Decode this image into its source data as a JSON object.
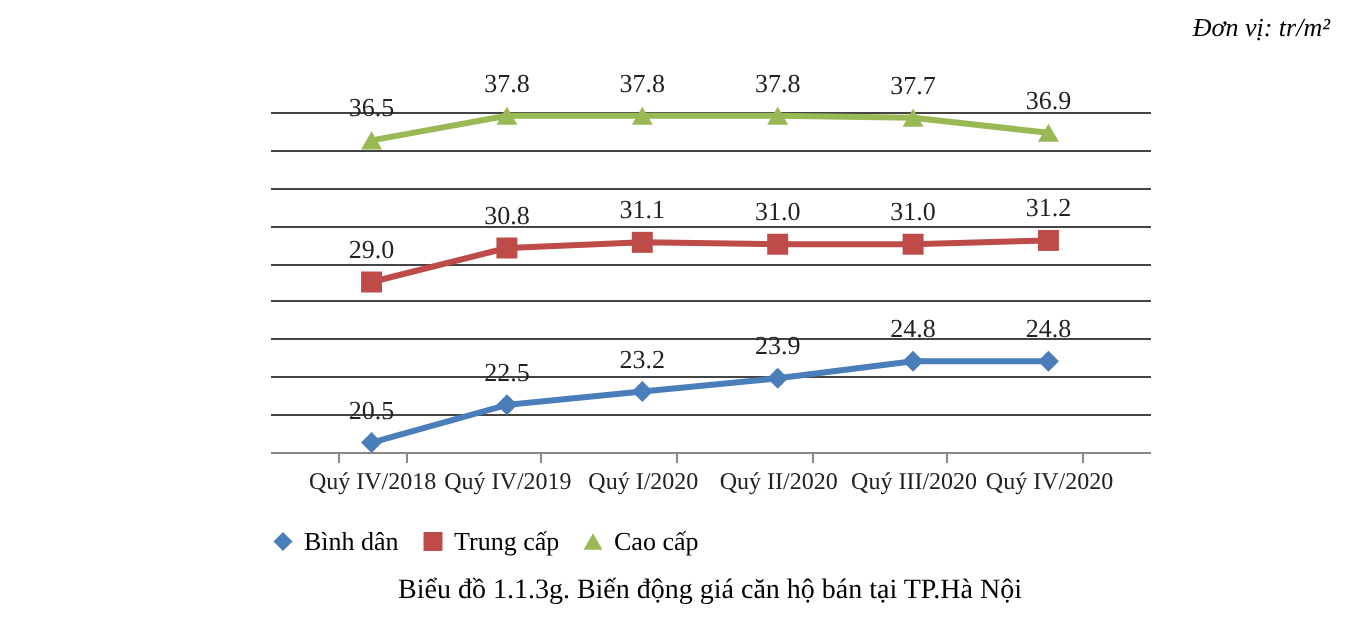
{
  "chart_data": {
    "type": "line",
    "title": "Biểu đồ 1.1.3g. Biến động giá căn hộ bán tại TP.Hà Nội",
    "annotations": [
      "Đơn vị: tr/m²"
    ],
    "categories": [
      "Quý IV/2018",
      "Quý IV/2019",
      "Quý I/2020",
      "Quý II/2020",
      "Quý III/2020",
      "Quý IV/2020"
    ],
    "series": [
      {
        "name": "Bình dân",
        "color": "#4a7ebb",
        "marker": "diamond",
        "values": [
          20.5,
          22.5,
          23.2,
          23.9,
          24.8,
          24.8
        ],
        "value_labels": [
          "20.5",
          "22.5",
          "23.2",
          "23.9",
          "24.8",
          "24.8"
        ]
      },
      {
        "name": "Trung cấp",
        "color": "#be4b48",
        "marker": "square",
        "values": [
          29.0,
          30.8,
          31.1,
          31.0,
          31.0,
          31.2
        ],
        "value_labels": [
          "29.0",
          "30.8",
          "31.1",
          "31.0",
          "31.0",
          "31.2"
        ]
      },
      {
        "name": "Cao cấp",
        "color": "#98b954",
        "marker": "triangle",
        "values": [
          36.5,
          37.8,
          37.8,
          37.8,
          37.7,
          36.9
        ],
        "value_labels": [
          "36.5",
          "37.8",
          "37.8",
          "37.8",
          "37.7",
          "36.9"
        ]
      }
    ],
    "data_labels": true,
    "grid": true,
    "legend": "bottom",
    "line_style": "solid"
  }
}
